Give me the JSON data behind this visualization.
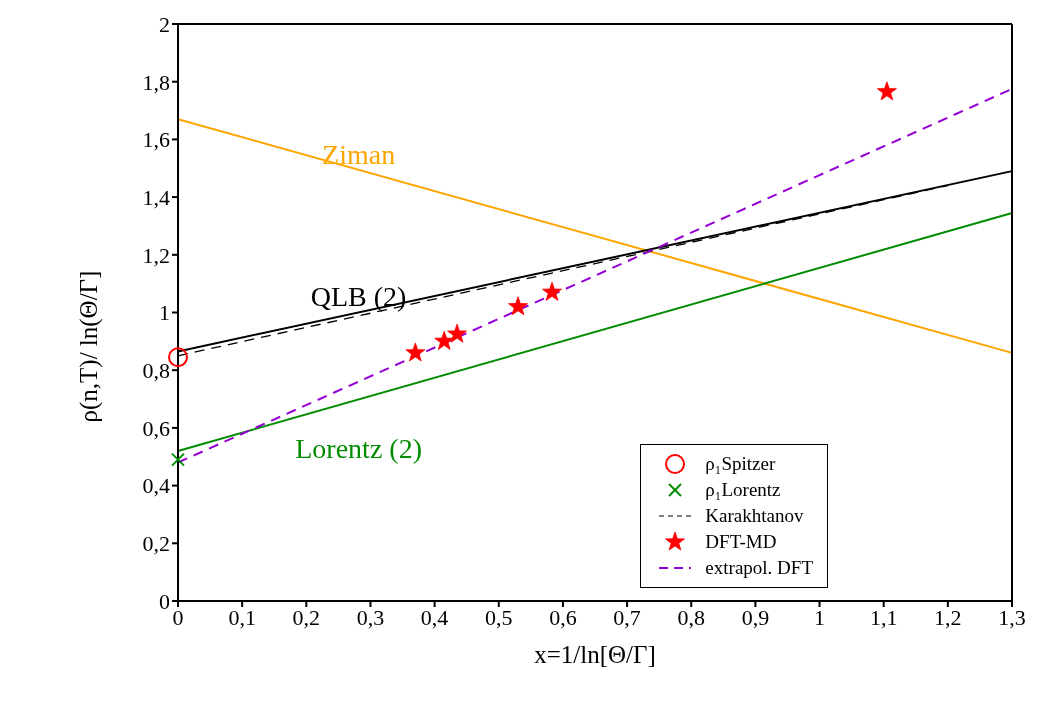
{
  "chart_data": {
    "type": "line",
    "xlabel": "x=1/ln[Θ/Γ]",
    "ylabel": "ρ(n,T)/ ln(Θ/Γ]",
    "xlim": [
      0,
      1.3
    ],
    "ylim": [
      0,
      2
    ],
    "xticks": [
      0,
      {
        "value": 0.1,
        "label": "0,1"
      },
      {
        "value": 0.2,
        "label": "0,2"
      },
      {
        "value": 0.3,
        "label": "0,3"
      },
      {
        "value": 0.4,
        "label": "0,4"
      },
      {
        "value": 0.5,
        "label": "0,5"
      },
      {
        "value": 0.6,
        "label": "0,6"
      },
      {
        "value": 0.7,
        "label": "0,7"
      },
      {
        "value": 0.8,
        "label": "0,8"
      },
      {
        "value": 0.9,
        "label": "0,9"
      },
      1,
      {
        "value": 1.1,
        "label": "1,1"
      },
      {
        "value": 1.2,
        "label": "1,2"
      },
      {
        "value": 1.3,
        "label": "1,3"
      }
    ],
    "yticks": [
      0,
      {
        "value": 0.2,
        "label": "0,2"
      },
      {
        "value": 0.4,
        "label": "0,4"
      },
      {
        "value": 0.6,
        "label": "0,6"
      },
      {
        "value": 0.8,
        "label": "0,8"
      },
      1,
      {
        "value": 1.2,
        "label": "1,2"
      },
      {
        "value": 1.4,
        "label": "1,4"
      },
      {
        "value": 1.6,
        "label": "1,6"
      },
      {
        "value": 1.8,
        "label": "1,8"
      },
      2
    ],
    "legend": "bottom right",
    "series": [
      {
        "name": "Ziman",
        "color": "#ffa500",
        "line_style": "solid",
        "x": [
          0,
          1.3
        ],
        "values": [
          1.67,
          0.86
        ]
      },
      {
        "name": "QLB (2)",
        "color": "#000000",
        "line_style": "solid",
        "x": [
          0,
          1.3
        ],
        "values": [
          0.865,
          1.49
        ]
      },
      {
        "name": "Lorentz (2)",
        "color": "#008c00",
        "line_style": "solid",
        "x": [
          0,
          1.3
        ],
        "values": [
          0.52,
          1.345
        ]
      },
      {
        "name": "ρ₁Spitzer",
        "type": "scatter",
        "color": "#ff0000",
        "marker": "circle",
        "x": [
          0
        ],
        "values": [
          0.845
        ]
      },
      {
        "name": "ρ₁Lorentz",
        "type": "scatter",
        "color": "#008c00",
        "marker": "cross",
        "x": [
          0
        ],
        "values": [
          0.49
        ]
      },
      {
        "name": "Karakhtanov",
        "color": "#000000",
        "line_style": "dashed",
        "x": [
          0,
          1.2
        ],
        "values": [
          0.85,
          1.44
        ]
      },
      {
        "name": "DFT-MD",
        "type": "scatter",
        "color": "#ff0000",
        "marker": "star",
        "x": [
          0.37,
          0.415,
          0.435,
          0.53,
          0.583,
          1.105
        ],
        "values": [
          0.86,
          0.9,
          0.925,
          1.02,
          1.07,
          1.765
        ]
      },
      {
        "name": "extrapol. DFT",
        "color": "#9400d3",
        "line_style": "dashed",
        "x": [
          0,
          1.3
        ],
        "values": [
          0.48,
          1.775
        ]
      }
    ]
  }
}
